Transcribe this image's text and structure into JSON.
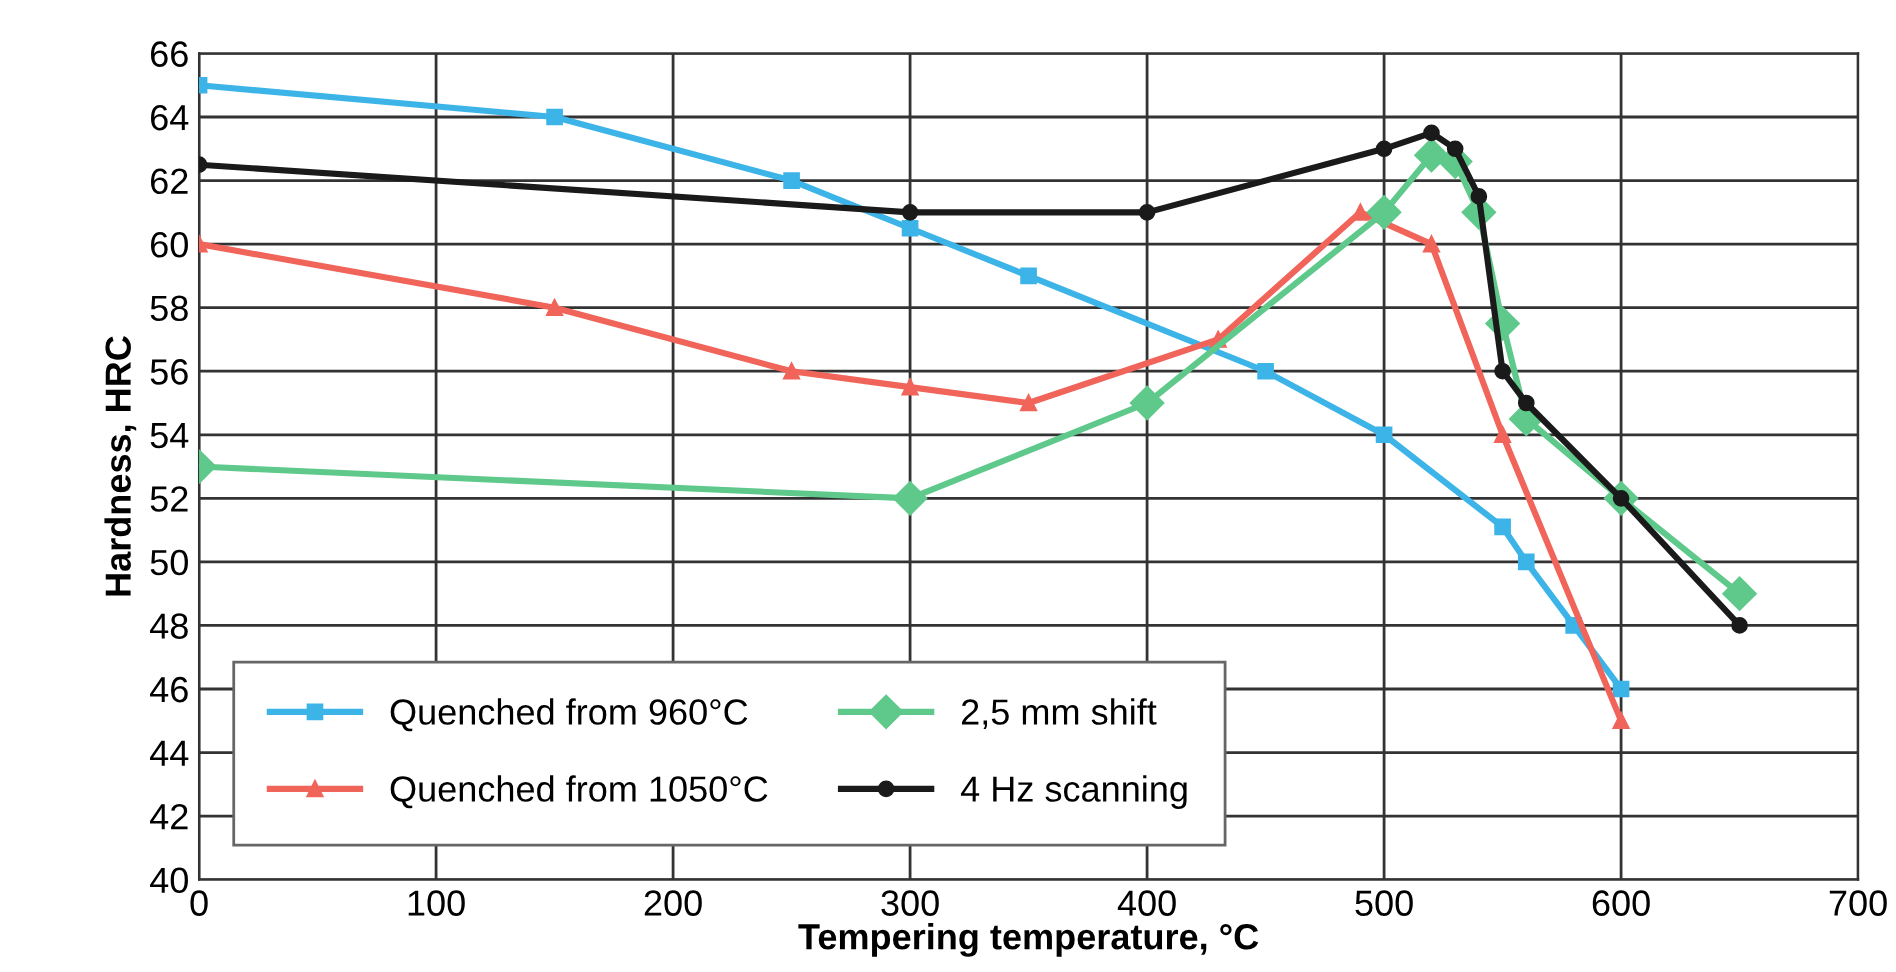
{
  "chart_data": {
    "type": "line",
    "xlabel": "Tempering temperature, °C",
    "ylabel": "Hardness, HRC",
    "xlim": [
      0,
      700
    ],
    "xticks": [
      0,
      100,
      200,
      300,
      400,
      500,
      600,
      700
    ],
    "ylim": [
      40,
      66
    ],
    "yticks": [
      40,
      42,
      44,
      46,
      48,
      50,
      52,
      54,
      56,
      58,
      60,
      62,
      64,
      66
    ],
    "grid": true,
    "legend": "bottom left",
    "line_style": "solid",
    "series": [
      {
        "name": "Quenched from 960°C",
        "color": "#3db4e8",
        "marker": "square",
        "x": [
          0,
          150,
          250,
          300,
          350,
          450,
          500,
          550,
          560,
          580,
          600
        ],
        "values": [
          65,
          64,
          62,
          60.5,
          59,
          56,
          54,
          51.1,
          50,
          48,
          46
        ]
      },
      {
        "name": "Quenched from 1050°C",
        "color": "#f0645a",
        "marker": "triangle",
        "x": [
          0,
          150,
          250,
          300,
          350,
          430,
          490,
          520,
          550,
          600
        ],
        "values": [
          60,
          58,
          56,
          55.5,
          55,
          57,
          61,
          60,
          54,
          45
        ]
      },
      {
        "name": "2,5 mm shift",
        "color": "#5ec98a",
        "marker": "diamond",
        "x": [
          0,
          300,
          400,
          500,
          520,
          530,
          540,
          550,
          560,
          600,
          650
        ],
        "values": [
          53,
          52,
          55,
          61,
          62.8,
          62.6,
          61,
          57.5,
          54.5,
          52,
          49
        ]
      },
      {
        "name": "4 Hz scanning",
        "color": "#1a1a1a",
        "marker": "circle",
        "x": [
          0,
          300,
          400,
          500,
          520,
          530,
          540,
          550,
          560,
          600,
          650
        ],
        "values": [
          62.5,
          61,
          61,
          63,
          63.5,
          63,
          61.5,
          56,
          55,
          52,
          48
        ]
      }
    ]
  }
}
